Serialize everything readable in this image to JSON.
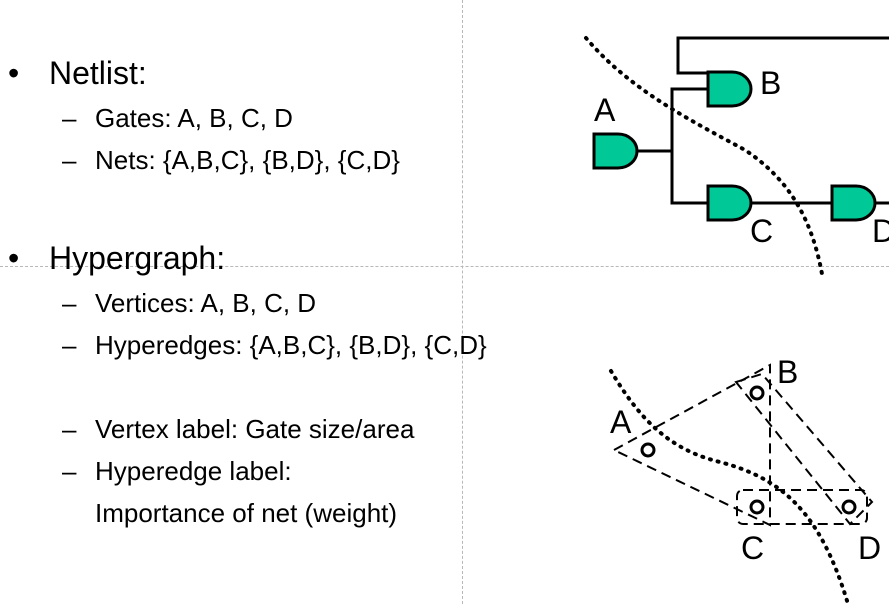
{
  "netlist": {
    "bullet": "•",
    "heading": "Netlist:",
    "items": [
      {
        "dash": "–",
        "text": "Gates: A, B, C, D"
      },
      {
        "dash": "–",
        "text": "Nets: {A,B,C}, {B,D}, {C,D}"
      }
    ]
  },
  "hypergraph": {
    "bullet": "•",
    "heading": "Hypergraph:",
    "items": [
      {
        "dash": "–",
        "text": "Vertices: A, B, C, D"
      },
      {
        "dash": "–",
        "text": "Hyperedges: {A,B,C}, {B,D}, {C,D}"
      },
      {
        "dash": "–",
        "text": "Vertex label: Gate size/area"
      },
      {
        "dash": "–",
        "text": "Hyperedge label:"
      }
    ],
    "continuation": "Importance of net (weight)"
  },
  "circuit": {
    "gate_color": "#00c896",
    "labels": {
      "a": "A",
      "b": "B",
      "c": "C",
      "d": "D"
    }
  },
  "hypergraph_figure": {
    "labels": {
      "a": "A",
      "b": "B",
      "c": "C",
      "d": "D"
    }
  }
}
